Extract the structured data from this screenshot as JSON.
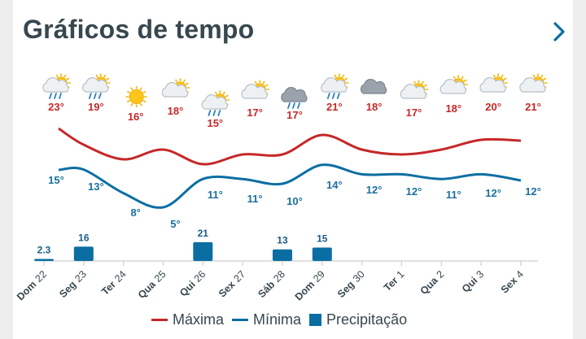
{
  "header": {
    "title": "Gráficos de tempo"
  },
  "legend": {
    "max": "Máxima",
    "min": "Mínima",
    "precip": "Precipitação"
  },
  "colors": {
    "max": "#c62828",
    "min": "#0b6ea3",
    "precip": "#0b6ea3"
  },
  "chart_data": {
    "type": "line",
    "categories": [
      "Dom 22",
      "Seg 23",
      "Ter 24",
      "Qua 25",
      "Qui 26",
      "Sex 27",
      "Sáb 28",
      "Dom 29",
      "Seg 30",
      "Ter 1",
      "Qua 2",
      "Qui 3",
      "Sex 4"
    ],
    "days": [
      {
        "name": "Dom",
        "num": "22",
        "icon": "sun-cloud-rain-icon"
      },
      {
        "name": "Seg",
        "num": "23",
        "icon": "sun-cloud-rain-icon"
      },
      {
        "name": "Ter",
        "num": "24",
        "icon": "sun-icon"
      },
      {
        "name": "Qua",
        "num": "25",
        "icon": "sun-cloud-icon"
      },
      {
        "name": "Qui",
        "num": "26",
        "icon": "sun-cloud-rain-icon"
      },
      {
        "name": "Sex",
        "num": "27",
        "icon": "sun-cloud-icon"
      },
      {
        "name": "Sáb",
        "num": "28",
        "icon": "cloud-rain-icon"
      },
      {
        "name": "Dom",
        "num": "29",
        "icon": "sun-cloud-rain-icon"
      },
      {
        "name": "Seg",
        "num": "30",
        "icon": "cloud-icon"
      },
      {
        "name": "Ter",
        "num": "1",
        "icon": "sun-cloud-icon"
      },
      {
        "name": "Qua",
        "num": "2",
        "icon": "sun-cloud-icon"
      },
      {
        "name": "Qui",
        "num": "3",
        "icon": "sun-cloud-icon"
      },
      {
        "name": "Sex",
        "num": "4",
        "icon": "sun-cloud-icon"
      }
    ],
    "series": [
      {
        "name": "Máxima",
        "values": [
          23,
          19,
          16,
          18,
          15,
          17,
          17,
          21,
          18,
          17,
          18,
          20,
          21
        ],
        "labels": [
          "23°",
          "19°",
          "16°",
          "18°",
          "15°",
          "17°",
          "17°",
          "21°",
          "18°",
          "17°",
          "18°",
          "20°",
          "21°"
        ]
      },
      {
        "name": "Mínima",
        "values": [
          15,
          13,
          8,
          5,
          11,
          11,
          10,
          14,
          12,
          12,
          11,
          12,
          12
        ],
        "labels": [
          "15°",
          "13°",
          "8°",
          "5°",
          "11°",
          "11°",
          "10°",
          "14°",
          "12°",
          "12°",
          "11°",
          "12°",
          "12°"
        ]
      },
      {
        "name": "Precipitação",
        "values": [
          2.3,
          16,
          0,
          0,
          21,
          0,
          13,
          15,
          0,
          0,
          0,
          0,
          0
        ],
        "labels": [
          "2.3",
          "16",
          "",
          "",
          "21",
          "",
          "13",
          "15",
          "",
          "",
          "",
          "",
          ""
        ]
      }
    ]
  }
}
